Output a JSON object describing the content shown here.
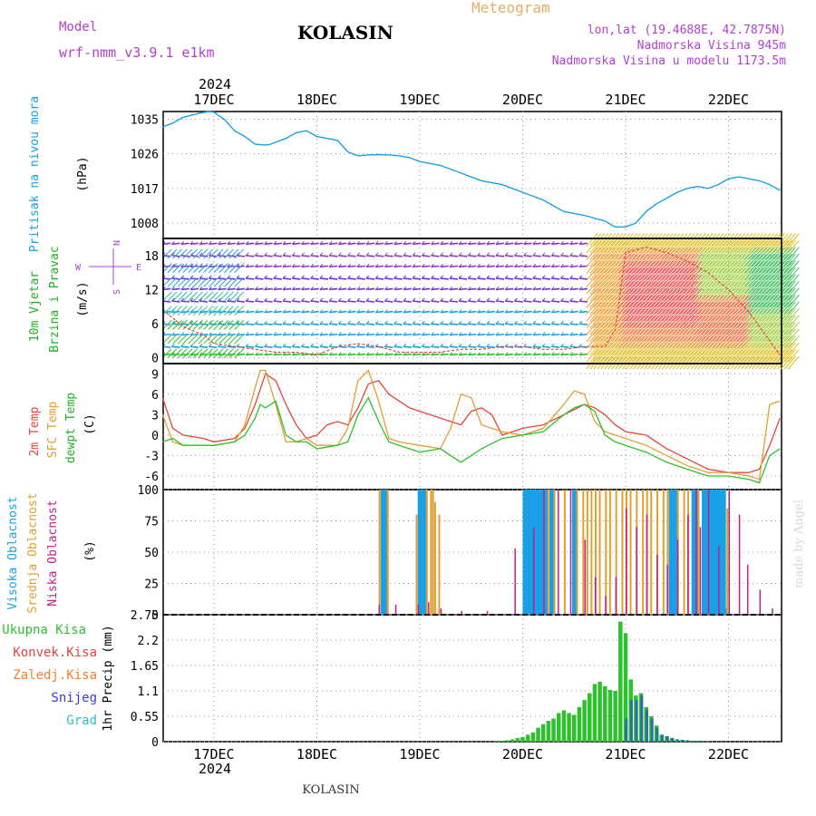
{
  "header": {
    "model_label": "Model",
    "model_name": "wrf-nmm_v3.9.1 e1km",
    "station": "KOLASIN",
    "meteogram_label": "Meteogram",
    "lonlat": "lon,lat (19.4688E, 42.7875N)",
    "altitude": "Nadmorska Visina 945m",
    "model_altitude": "Nadmorska Visina u modelu 1173.5m",
    "year": "2024",
    "footer_station": "KOLASIN",
    "watermark": "made by Angel"
  },
  "colors": {
    "pressure": "#1aa0e6",
    "temp2m": "#e8443c",
    "sfc": "#e0a030",
    "dew": "#2ec02e",
    "high_cloud": "#1aa0e6",
    "mid_cloud": "#e0a030",
    "low_cloud": "#c0208a",
    "total_precip": "#2ec02e",
    "conv_precip": "#e8443c",
    "frozen_precip": "#f08030",
    "snow": "#3a3ae0",
    "graupel": "#30c0c0",
    "wind_label": "#20b020",
    "panel_label_purple": "#b040d0",
    "meteogram_label": "#e0b060"
  },
  "chart_data": [
    {
      "type": "line",
      "ylabel_vertical": "Pritisak na nivou mora",
      "unit": "(hPa)",
      "ylim": [
        1004,
        1037
      ],
      "yticks": [
        1008,
        1017,
        1026,
        1035
      ],
      "x_labels": [
        "17DEC",
        "18DEC",
        "19DEC",
        "20DEC",
        "21DEC",
        "22DEC"
      ],
      "series": [
        {
          "x": [
            -0.5,
            -0.4,
            -0.3,
            -0.15,
            -0.05,
            0.0,
            0.1,
            0.2,
            0.3,
            0.4,
            0.5,
            0.55,
            0.6,
            0.7,
            0.8,
            0.9,
            1.0,
            1.1,
            1.2,
            1.3,
            1.4,
            1.5,
            1.6,
            1.7,
            1.8,
            1.9,
            2.0,
            2.2,
            2.4,
            2.6,
            2.8,
            2.9,
            3.0,
            3.2,
            3.4,
            3.6,
            3.8,
            3.9,
            4.0,
            4.1,
            4.2,
            4.3,
            4.4,
            4.5,
            4.6,
            4.7,
            4.8,
            4.9,
            5.0,
            5.1,
            5.2,
            5.3,
            5.4,
            5.5
          ],
          "values": [
            1033,
            1034,
            1035.5,
            1036.5,
            1037,
            1036.8,
            1035,
            1032,
            1030.5,
            1028.5,
            1028.3,
            1028.5,
            1029,
            1030,
            1031.5,
            1032,
            1030.5,
            1030,
            1029.5,
            1026.5,
            1025.5,
            1025.7,
            1025.8,
            1025.7,
            1025.5,
            1025,
            1024,
            1023,
            1021,
            1019,
            1018,
            1017,
            1016,
            1014,
            1011,
            1010,
            1008.5,
            1007,
            1007,
            1008,
            1011,
            1013,
            1014.5,
            1016,
            1017,
            1017.5,
            1017,
            1018,
            1019.5,
            1020,
            1019.5,
            1019,
            1018,
            1016.5
          ]
        }
      ]
    },
    {
      "type": "area",
      "ylabel_vertical": "10m Vjetar",
      "ylabel_vertical_2": "Brzina i Pravac",
      "unit": "(m/s)",
      "ylim": [
        -1,
        21
      ],
      "yticks": [
        0,
        6,
        12,
        18
      ],
      "compass": {
        "north": "N",
        "west": "W",
        "east": "E",
        "south": "S"
      },
      "speed_x": [
        -0.5,
        -0.3,
        -0.1,
        0.0,
        0.2,
        0.4,
        0.6,
        0.8,
        1.0,
        1.2,
        1.4,
        1.6,
        1.8,
        2.0,
        2.2,
        2.4,
        2.6,
        2.8,
        3.0,
        3.2,
        3.4,
        3.6,
        3.8,
        3.9,
        4.0,
        4.2,
        4.4,
        4.6,
        4.8,
        5.0,
        5.2,
        5.4,
        5.5
      ],
      "speed_values": [
        8.5,
        5.5,
        4.0,
        2.5,
        2.0,
        1.5,
        1.0,
        1.0,
        0.5,
        2.0,
        2.5,
        2.0,
        1.0,
        1.0,
        1.0,
        1.5,
        1.5,
        2.0,
        2.0,
        1.5,
        1.5,
        2.0,
        2.0,
        5.0,
        18.5,
        19.5,
        18.5,
        17.0,
        15.0,
        12.0,
        8.0,
        3.0,
        0.5
      ]
    },
    {
      "type": "line",
      "ylabel_vertical": "2m Temp",
      "ylabel_vertical_2": "SFC Temp",
      "ylabel_vertical_3": "dewpt Temp",
      "unit": "(C)",
      "ylim": [
        -8,
        10.5
      ],
      "yticks": [
        -6,
        -3,
        0,
        3,
        6,
        9
      ],
      "series": [
        {
          "name": "2m Temp",
          "x": [
            -0.5,
            -0.4,
            -0.3,
            -0.1,
            0.0,
            0.2,
            0.3,
            0.4,
            0.5,
            0.6,
            0.7,
            0.8,
            0.9,
            1.0,
            1.1,
            1.2,
            1.3,
            1.4,
            1.5,
            1.6,
            1.7,
            1.8,
            1.9,
            2.0,
            2.2,
            2.4,
            2.5,
            2.6,
            2.7,
            2.8,
            3.0,
            3.2,
            3.4,
            3.6,
            3.7,
            3.8,
            3.9,
            4.0,
            4.2,
            4.4,
            4.6,
            4.8,
            5.0,
            5.2,
            5.3,
            5.4,
            5.5
          ],
          "values": [
            5.5,
            1,
            0,
            -0.5,
            -1,
            -0.5,
            1,
            4.5,
            9,
            8,
            4.5,
            1.5,
            -0.5,
            0,
            1.5,
            2,
            1.5,
            4,
            7.5,
            8,
            6,
            5,
            4,
            3.5,
            2.5,
            1.5,
            3.5,
            4,
            3,
            0,
            1,
            1.5,
            3,
            4.5,
            4,
            3,
            1.5,
            0.5,
            0,
            -2,
            -3.5,
            -5,
            -5.5,
            -5.5,
            -5,
            -1.5,
            2.5
          ]
        },
        {
          "name": "SFC Temp",
          "x": [
            -0.5,
            -0.4,
            -0.3,
            -0.1,
            0.0,
            0.2,
            0.3,
            0.4,
            0.45,
            0.5,
            0.6,
            0.7,
            0.8,
            0.9,
            1.0,
            1.2,
            1.3,
            1.4,
            1.5,
            1.6,
            1.7,
            1.8,
            2.0,
            2.2,
            2.3,
            2.4,
            2.5,
            2.6,
            2.8,
            3.0,
            3.2,
            3.4,
            3.5,
            3.6,
            3.7,
            3.8,
            3.9,
            4.0,
            4.2,
            4.4,
            4.6,
            4.8,
            5.0,
            5.2,
            5.3,
            5.4,
            5.5
          ],
          "values": [
            3,
            -1,
            -1.5,
            -1.5,
            -1.5,
            -1,
            1.5,
            7,
            9.5,
            9.5,
            4.5,
            -1,
            -1,
            -0.5,
            -1.5,
            -1.5,
            1,
            8,
            9.5,
            5,
            -0.5,
            -1,
            -1.5,
            -2,
            1,
            6,
            5.5,
            1.5,
            0.5,
            0,
            1,
            4.5,
            6.5,
            6,
            2,
            0.5,
            0,
            -0.5,
            -1.5,
            -3,
            -4.5,
            -5.5,
            -5.5,
            -6,
            -6.5,
            4.5,
            5
          ]
        },
        {
          "name": "dewpt Temp",
          "x": [
            -0.5,
            -0.4,
            -0.3,
            -0.1,
            0.0,
            0.2,
            0.3,
            0.4,
            0.45,
            0.5,
            0.6,
            0.7,
            0.8,
            0.9,
            1.0,
            1.2,
            1.3,
            1.4,
            1.5,
            1.6,
            1.7,
            1.8,
            2.0,
            2.2,
            2.3,
            2.4,
            2.5,
            2.6,
            2.8,
            3.0,
            3.2,
            3.4,
            3.5,
            3.6,
            3.7,
            3.8,
            3.9,
            4.0,
            4.2,
            4.4,
            4.6,
            4.8,
            5.0,
            5.2,
            5.3,
            5.4,
            5.5
          ],
          "values": [
            -1,
            -0.5,
            -1.5,
            -1.5,
            -1.5,
            -1,
            0,
            2.5,
            4.5,
            4,
            5,
            0,
            -1,
            -1,
            -2,
            -1.5,
            -1,
            3,
            5.5,
            2,
            -1,
            -1.5,
            -2.5,
            -2,
            -3,
            -4,
            -3,
            -2,
            -0.5,
            0,
            0.5,
            3,
            4,
            4.5,
            3.5,
            0,
            -1,
            -1.5,
            -2.5,
            -4,
            -5,
            -6,
            -6,
            -6.5,
            -7,
            -3,
            -2
          ]
        }
      ]
    },
    {
      "type": "bar",
      "ylabel_vertical": "Visoka Oblacnost",
      "ylabel_vertical_2": "Srednja Oblacnost",
      "ylabel_vertical_3": "Niska Oblacnost",
      "unit": "(%)",
      "ylim": [
        0,
        100
      ],
      "yticks": [
        0,
        25,
        50,
        75,
        100
      ],
      "series": [
        {
          "name": "Visoka Oblacnost",
          "x": [
            1.62,
            1.64,
            1.66,
            1.98,
            2.0,
            2.02,
            2.04,
            3.0,
            3.02,
            3.04,
            3.06,
            3.08,
            3.1,
            3.12,
            3.14,
            3.16,
            3.18,
            3.2,
            3.22,
            3.26,
            3.28,
            3.48,
            3.5,
            4.42,
            4.44,
            4.46,
            4.48,
            4.64,
            4.66,
            4.68,
            4.74,
            4.76,
            4.78,
            4.8,
            4.82,
            4.84,
            4.86,
            4.88,
            4.9,
            4.92,
            4.94,
            4.96
          ],
          "values": [
            100,
            100,
            100,
            100,
            100,
            100,
            100,
            100,
            100,
            100,
            100,
            100,
            100,
            100,
            100,
            100,
            100,
            100,
            100,
            100,
            100,
            100,
            100,
            100,
            100,
            100,
            100,
            100,
            100,
            100,
            100,
            100,
            100,
            100,
            100,
            100,
            100,
            100,
            100,
            100,
            100,
            5
          ]
        },
        {
          "name": "Srednja Oblacnost",
          "x": [
            1.6,
            1.68,
            1.96,
            2.06,
            2.1,
            2.12,
            2.14,
            2.18,
            3.24,
            3.3,
            3.4,
            3.52,
            3.58,
            3.62,
            3.66,
            3.7,
            3.74,
            3.8,
            3.84,
            3.9,
            3.96,
            4.0,
            4.04,
            4.1,
            4.16,
            4.2,
            4.24,
            4.3,
            4.36,
            4.4,
            4.5,
            4.56,
            4.6,
            4.7,
            4.98
          ],
          "values": [
            100,
            100,
            80,
            100,
            100,
            100,
            90,
            80,
            100,
            100,
            100,
            100,
            100,
            100,
            100,
            100,
            100,
            100,
            100,
            100,
            100,
            100,
            100,
            100,
            100,
            100,
            100,
            100,
            100,
            100,
            100,
            100,
            100,
            100,
            85
          ]
        },
        {
          "name": "Niska Oblacnost",
          "x": [
            1.6,
            1.76,
            1.98,
            2.08,
            2.2,
            2.4,
            2.65,
            2.92,
            3.1,
            3.2,
            3.34,
            3.46,
            3.6,
            3.7,
            3.8,
            3.9,
            4.0,
            4.1,
            4.2,
            4.3,
            4.4,
            4.5,
            4.6,
            4.68,
            4.72,
            4.8,
            4.9,
            5.0,
            5.1,
            5.18,
            5.3,
            5.42
          ],
          "values": [
            8,
            8,
            8,
            10,
            5,
            3,
            3,
            53,
            70,
            100,
            100,
            100,
            60,
            30,
            15,
            30,
            85,
            70,
            80,
            48,
            40,
            60,
            80,
            100,
            70,
            100,
            55,
            100,
            80,
            40,
            20,
            5
          ]
        }
      ]
    },
    {
      "type": "bar",
      "ylabel": "1hr Precip (mm)",
      "ylim": [
        0,
        2.75
      ],
      "yticks": [
        0,
        0.55,
        1.1,
        1.65,
        2.2,
        2.75
      ],
      "ytick_labels": [
        "0",
        "0.55",
        "1.1",
        "1.65",
        "2.2",
        "2.75"
      ],
      "legend": [
        "Ukupna Kisa",
        "Konvek.Kisa",
        "Zaledj.Kisa",
        "Snijeg",
        "Grad"
      ],
      "series": [
        {
          "name": "Ukupna Kisa",
          "x": [
            2.75,
            2.8,
            2.85,
            2.9,
            2.95,
            3.0,
            3.05,
            3.1,
            3.15,
            3.2,
            3.25,
            3.3,
            3.35,
            3.4,
            3.45,
            3.5,
            3.55,
            3.6,
            3.65,
            3.7,
            3.75,
            3.8,
            3.85,
            3.9,
            3.95,
            4.0,
            4.05,
            4.1,
            4.15,
            4.2,
            4.25,
            4.3,
            4.35,
            4.4,
            4.45,
            4.5,
            4.55,
            4.6,
            4.65,
            4.7,
            4.75,
            4.8
          ],
          "values": [
            0.01,
            0.02,
            0.03,
            0.05,
            0.08,
            0.1,
            0.15,
            0.2,
            0.3,
            0.38,
            0.45,
            0.5,
            0.62,
            0.68,
            0.62,
            0.58,
            0.75,
            0.9,
            1.05,
            1.25,
            1.3,
            1.2,
            1.12,
            1.1,
            2.6,
            2.35,
            1.35,
            1.0,
            1.05,
            0.75,
            0.55,
            0.35,
            0.15,
            0.12,
            0.08,
            0.05,
            0.04,
            0.03,
            0.02,
            0.02,
            0.01,
            0.01
          ]
        },
        {
          "name": "Snijeg",
          "x": [
            4.0,
            4.05,
            4.1,
            4.15,
            4.2,
            4.25,
            4.3,
            4.35,
            4.4,
            4.45,
            4.5,
            4.55,
            4.6,
            4.65,
            4.7,
            4.75,
            4.8
          ],
          "values": [
            0.5,
            0.9,
            0.9,
            1.0,
            0.7,
            0.5,
            0.3,
            0.15,
            0.12,
            0.08,
            0.05,
            0.04,
            0.03,
            0.02,
            0.02,
            0.01,
            0.01
          ]
        }
      ]
    }
  ]
}
